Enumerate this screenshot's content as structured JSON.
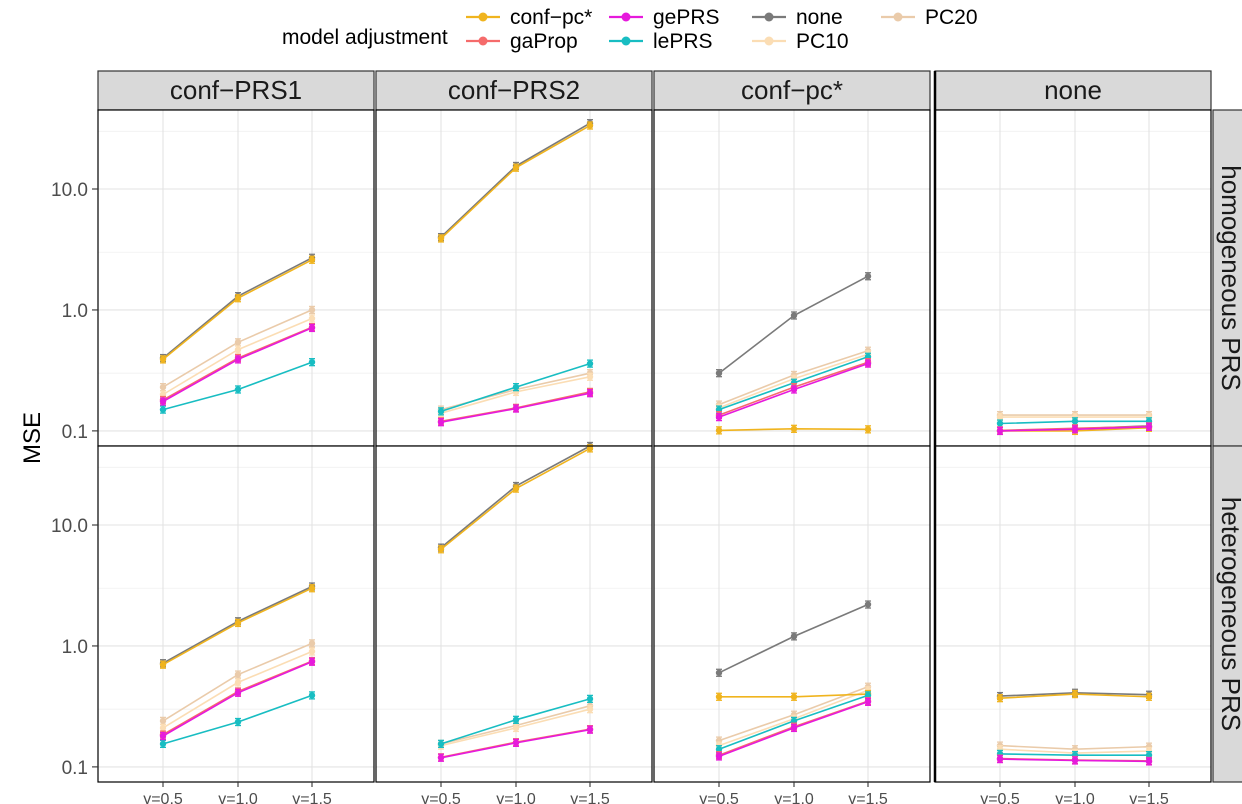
{
  "legend": {
    "title": "model adjustment",
    "entries": [
      {
        "label": "conf−pc*",
        "color": "#F0B41E"
      },
      {
        "label": "gaProp",
        "color": "#F56B6B"
      },
      {
        "label": "gePRS",
        "color": "#E61ADC"
      },
      {
        "label": "lePRS",
        "color": "#18BDC2"
      },
      {
        "label": "none",
        "color": "#7A7A7A"
      },
      {
        "label": "PC10",
        "color": "#FBDDB4"
      },
      {
        "label": "PC20",
        "color": "#EACBAA"
      }
    ]
  },
  "chart_data": {
    "type": "line",
    "y_scale": "log10",
    "ylabel": "MSE",
    "xlabel": "",
    "categories": [
      "γ=0.5",
      "γ=1.0",
      "γ=1.5"
    ],
    "y_ticks": [
      0.1,
      1.0,
      10.0
    ],
    "y_tick_labels": [
      "0.1",
      "1.0",
      "10.0"
    ],
    "ylim": [
      0.075,
      45
    ],
    "column_strips": [
      "conf−PRS1",
      "conf−PRS2",
      "conf−pc*",
      "none"
    ],
    "row_strips": [
      "homogeneous PRS",
      "heterogeneous PRS"
    ],
    "grid": true,
    "legend_position": "top",
    "panels": [
      {
        "row": "homogeneous PRS",
        "col": "conf−PRS1",
        "series": [
          {
            "name": "PC20",
            "values": [
              0.23,
              0.54,
              1.0
            ]
          },
          {
            "name": "PC10",
            "values": [
              0.2,
              0.47,
              0.85
            ]
          },
          {
            "name": "none",
            "values": [
              0.4,
              1.3,
              2.7
            ]
          },
          {
            "name": "conf−pc*",
            "values": [
              0.39,
              1.25,
              2.6
            ]
          },
          {
            "name": "lePRS",
            "values": [
              0.15,
              0.22,
              0.37
            ]
          },
          {
            "name": "gaProp",
            "values": [
              0.18,
              0.4,
              0.72
            ]
          },
          {
            "name": "gePRS",
            "values": [
              0.175,
              0.39,
              0.71
            ]
          }
        ]
      },
      {
        "row": "homogeneous PRS",
        "col": "conf−PRS2",
        "series": [
          {
            "name": "PC20",
            "values": [
              0.15,
              0.22,
              0.3
            ]
          },
          {
            "name": "PC10",
            "values": [
              0.14,
              0.21,
              0.28
            ]
          },
          {
            "name": "none",
            "values": [
              4.0,
              15.5,
              35.0
            ]
          },
          {
            "name": "conf−pc*",
            "values": [
              3.9,
              15.0,
              33.5
            ]
          },
          {
            "name": "lePRS",
            "values": [
              0.145,
              0.23,
              0.36
            ]
          },
          {
            "name": "gaProp",
            "values": [
              0.12,
              0.155,
              0.21
            ]
          },
          {
            "name": "gePRS",
            "values": [
              0.118,
              0.153,
              0.205
            ]
          }
        ]
      },
      {
        "row": "homogeneous PRS",
        "col": "conf−pc*",
        "series": [
          {
            "name": "PC20",
            "values": [
              0.165,
              0.29,
              0.46
            ]
          },
          {
            "name": "PC10",
            "values": [
              0.155,
              0.27,
              0.43
            ]
          },
          {
            "name": "none",
            "values": [
              0.3,
              0.9,
              1.9
            ]
          },
          {
            "name": "conf−pc*",
            "values": [
              0.101,
              0.104,
              0.103
            ]
          },
          {
            "name": "lePRS",
            "values": [
              0.15,
              0.25,
              0.41
            ]
          },
          {
            "name": "gaProp",
            "values": [
              0.135,
              0.23,
              0.37
            ]
          },
          {
            "name": "gePRS",
            "values": [
              0.13,
              0.22,
              0.36
            ]
          }
        ]
      },
      {
        "row": "homogeneous PRS",
        "col": "none",
        "series": [
          {
            "name": "PC20",
            "values": [
              0.135,
              0.135,
              0.135
            ]
          },
          {
            "name": "PC10",
            "values": [
              0.13,
              0.13,
              0.13
            ]
          },
          {
            "name": "none",
            "values": [
              0.1,
              0.104,
              0.11
            ]
          },
          {
            "name": "conf−pc*",
            "values": [
              0.1,
              0.1,
              0.106
            ]
          },
          {
            "name": "lePRS",
            "values": [
              0.115,
              0.12,
              0.12
            ]
          },
          {
            "name": "gaProp",
            "values": [
              0.101,
              0.105,
              0.109
            ]
          },
          {
            "name": "gePRS",
            "values": [
              0.1,
              0.103,
              0.108
            ]
          }
        ]
      },
      {
        "row": "heterogeneous PRS",
        "col": "conf−PRS1",
        "series": [
          {
            "name": "PC20",
            "values": [
              0.24,
              0.58,
              1.05
            ]
          },
          {
            "name": "PC10",
            "values": [
              0.21,
              0.5,
              0.9
            ]
          },
          {
            "name": "none",
            "values": [
              0.72,
              1.6,
              3.1
            ]
          },
          {
            "name": "conf−pc*",
            "values": [
              0.7,
              1.55,
              3.0
            ]
          },
          {
            "name": "lePRS",
            "values": [
              0.155,
              0.235,
              0.39
            ]
          },
          {
            "name": "gaProp",
            "values": [
              0.185,
              0.42,
              0.75
            ]
          },
          {
            "name": "gePRS",
            "values": [
              0.18,
              0.41,
              0.74
            ]
          }
        ]
      },
      {
        "row": "heterogeneous PRS",
        "col": "conf−PRS2",
        "series": [
          {
            "name": "PC20",
            "values": [
              0.155,
              0.22,
              0.32
            ]
          },
          {
            "name": "PC10",
            "values": [
              0.15,
              0.21,
              0.3
            ]
          },
          {
            "name": "none",
            "values": [
              6.5,
              21.0,
              45.0
            ]
          },
          {
            "name": "conf−pc*",
            "values": [
              6.3,
              20.0,
              43.0
            ]
          },
          {
            "name": "lePRS",
            "values": [
              0.155,
              0.245,
              0.365
            ]
          },
          {
            "name": "gaProp",
            "values": [
              0.12,
              0.16,
              0.205
            ]
          },
          {
            "name": "gePRS",
            "values": [
              0.119,
              0.158,
              0.203
            ]
          }
        ]
      },
      {
        "row": "heterogeneous PRS",
        "col": "conf−pc*",
        "series": [
          {
            "name": "PC20",
            "values": [
              0.165,
              0.27,
              0.46
            ]
          },
          {
            "name": "PC10",
            "values": [
              0.15,
              0.25,
              0.43
            ]
          },
          {
            "name": "none",
            "values": [
              0.6,
              1.2,
              2.2
            ]
          },
          {
            "name": "conf−pc*",
            "values": [
              0.38,
              0.38,
              0.4
            ]
          },
          {
            "name": "lePRS",
            "values": [
              0.14,
              0.24,
              0.39
            ]
          },
          {
            "name": "gaProp",
            "values": [
              0.125,
              0.215,
              0.35
            ]
          },
          {
            "name": "gePRS",
            "values": [
              0.122,
              0.21,
              0.345
            ]
          }
        ]
      },
      {
        "row": "heterogeneous PRS",
        "col": "none",
        "series": [
          {
            "name": "PC20",
            "values": [
              0.15,
              0.14,
              0.147
            ]
          },
          {
            "name": "PC10",
            "values": [
              0.14,
              0.13,
              0.135
            ]
          },
          {
            "name": "none",
            "values": [
              0.385,
              0.41,
              0.395
            ]
          },
          {
            "name": "conf−pc*",
            "values": [
              0.37,
              0.4,
              0.38
            ]
          },
          {
            "name": "lePRS",
            "values": [
              0.128,
              0.125,
              0.125
            ]
          },
          {
            "name": "gaProp",
            "values": [
              0.117,
              0.114,
              0.112
            ]
          },
          {
            "name": "gePRS",
            "values": [
              0.116,
              0.113,
              0.111
            ]
          }
        ]
      }
    ]
  }
}
